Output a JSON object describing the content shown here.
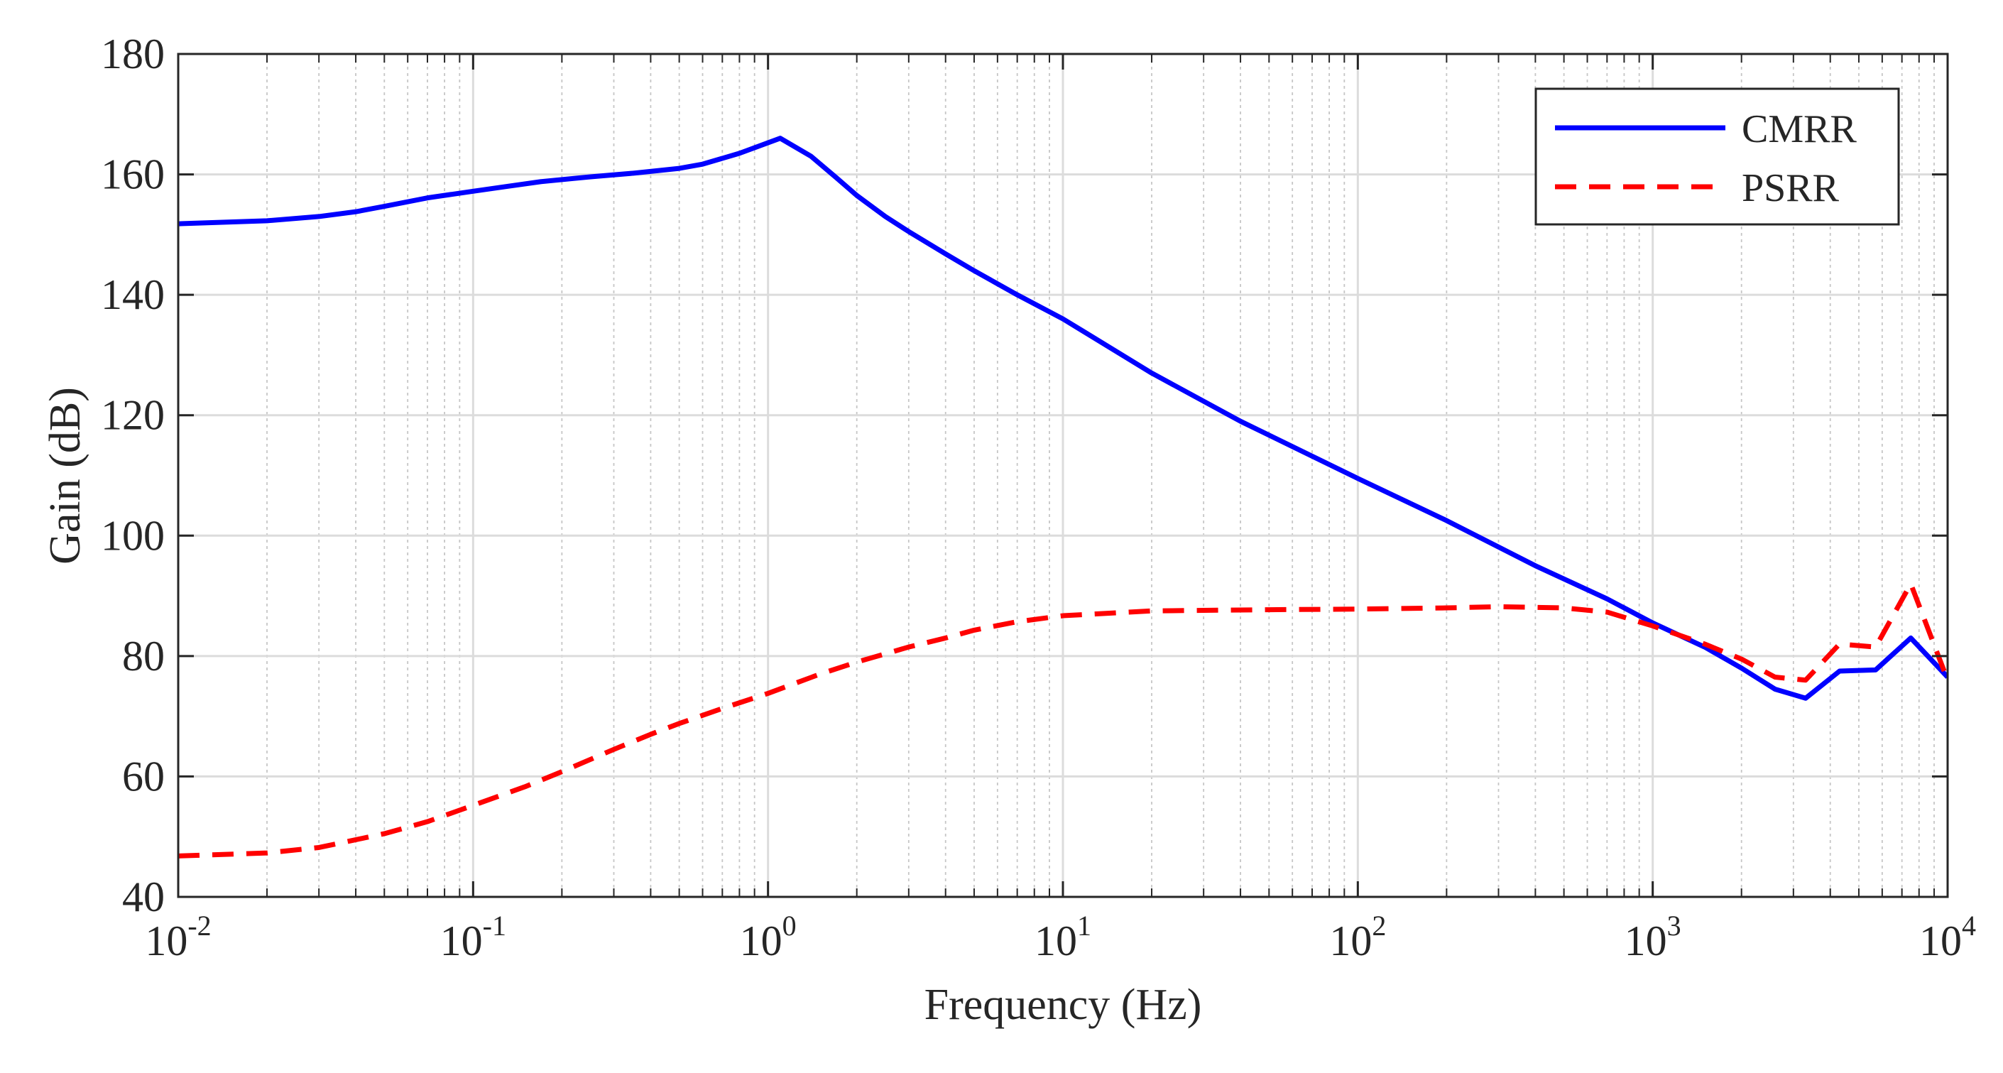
{
  "chart_data": {
    "type": "line",
    "title": "",
    "xlabel": "Frequency (Hz)",
    "ylabel": "Gain (dB)",
    "xscale": "log",
    "xlim": [
      0.01,
      10000
    ],
    "ylim": [
      40,
      180
    ],
    "grid": true,
    "legend_position": "top-right",
    "x_ticks": [
      {
        "value": 0.01,
        "base": "10",
        "exp": "-2"
      },
      {
        "value": 0.1,
        "base": "10",
        "exp": "-1"
      },
      {
        "value": 1,
        "base": "10",
        "exp": "0"
      },
      {
        "value": 10,
        "base": "10",
        "exp": "1"
      },
      {
        "value": 100,
        "base": "10",
        "exp": "2"
      },
      {
        "value": 1000,
        "base": "10",
        "exp": "3"
      },
      {
        "value": 10000,
        "base": "10",
        "exp": "4"
      }
    ],
    "y_ticks": [
      40,
      60,
      80,
      100,
      120,
      140,
      160,
      180
    ],
    "series": [
      {
        "name": "CMRR",
        "color": "#0000ff",
        "style": "solid",
        "x": [
          0.01,
          0.02,
          0.03,
          0.04,
          0.05,
          0.07,
          0.1,
          0.13,
          0.17,
          0.25,
          0.35,
          0.5,
          0.6,
          0.8,
          1.1,
          1.4,
          1.7,
          2,
          2.5,
          3,
          4,
          5,
          7,
          10,
          20,
          40,
          100,
          200,
          400,
          700,
          1000,
          1500,
          2000,
          2600,
          3300,
          4300,
          5700,
          7500,
          10000
        ],
        "y": [
          151.8,
          152.3,
          153.0,
          153.8,
          154.7,
          156.1,
          157.2,
          158.0,
          158.8,
          159.6,
          160.2,
          161.0,
          161.7,
          163.5,
          166.0,
          163.0,
          159.5,
          156.5,
          153.0,
          150.5,
          146.8,
          144.0,
          140.0,
          136.0,
          127.0,
          119.0,
          109.5,
          102.5,
          95.0,
          89.5,
          85.5,
          81.5,
          78.0,
          74.5,
          73.0,
          77.5,
          77.7,
          83.0,
          76.5
        ]
      },
      {
        "name": "PSRR",
        "color": "#ff0000",
        "style": "dashed",
        "x": [
          0.01,
          0.02,
          0.03,
          0.05,
          0.07,
          0.1,
          0.15,
          0.2,
          0.3,
          0.4,
          0.5,
          0.7,
          1,
          1.5,
          2,
          3,
          4,
          5,
          7,
          10,
          20,
          50,
          100,
          200,
          300,
          500,
          700,
          1000,
          1500,
          2000,
          2600,
          3300,
          4300,
          5700,
          7500,
          10000
        ],
        "y": [
          46.8,
          47.3,
          48.2,
          50.5,
          52.5,
          55.2,
          58.3,
          60.8,
          64.5,
          67.0,
          68.8,
          71.3,
          73.8,
          77.0,
          79.0,
          81.5,
          83.0,
          84.3,
          85.7,
          86.7,
          87.5,
          87.7,
          87.8,
          88.0,
          88.2,
          88.0,
          87.3,
          85.0,
          82.0,
          79.5,
          76.5,
          76.0,
          82.0,
          81.5,
          92.0,
          76.0
        ]
      }
    ]
  }
}
